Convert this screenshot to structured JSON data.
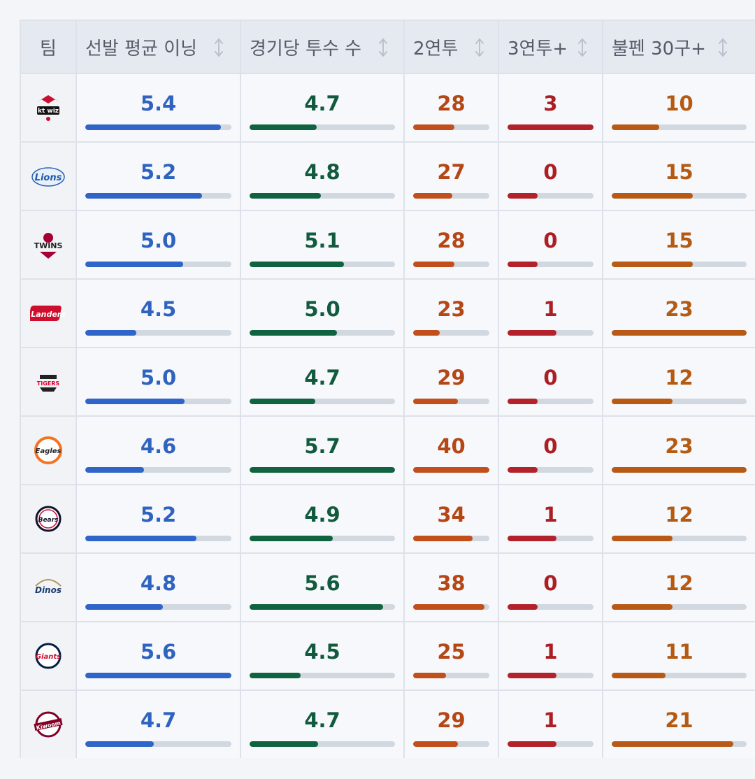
{
  "columns": [
    {
      "key": "team",
      "label": "팀",
      "sortable": false
    },
    {
      "key": "sp_ip",
      "label": "선발 평균 이닝",
      "sortable": true,
      "color": "#2f64c8",
      "max": 5.6
    },
    {
      "key": "pitchers",
      "label": "경기당 투수 수",
      "sortable": true,
      "color": "#0f6340",
      "max": 5.7
    },
    {
      "key": "b2b",
      "label": "2연투",
      "sortable": true,
      "color": "#c14f1b",
      "max": 40
    },
    {
      "key": "b3b",
      "label": "3연투+",
      "sortable": true,
      "color": "#b3222a",
      "max": 3
    },
    {
      "key": "bp30",
      "label": "불펜 30구+",
      "sortable": true,
      "color": "#b85a16",
      "max": 23
    }
  ],
  "rows": [
    {
      "team_logo": "kt-wiz-logo",
      "logo_text": "kt wiz",
      "sp_ip": "5.4",
      "pitchers": "4.7",
      "b2b": "28",
      "b3b": "3",
      "bp30": "10"
    },
    {
      "team_logo": "lions-logo",
      "logo_text": "Lions",
      "sp_ip": "5.2",
      "pitchers": "4.8",
      "b2b": "27",
      "b3b": "0",
      "bp30": "15"
    },
    {
      "team_logo": "twins-logo",
      "logo_text": "TWINS",
      "sp_ip": "5.0",
      "pitchers": "5.1",
      "b2b": "28",
      "b3b": "0",
      "bp30": "15"
    },
    {
      "team_logo": "landers-logo",
      "logo_text": "Landers",
      "sp_ip": "4.5",
      "pitchers": "5.0",
      "b2b": "23",
      "b3b": "1",
      "bp30": "23"
    },
    {
      "team_logo": "tigers-logo",
      "logo_text": "TIGERS",
      "sp_ip": "5.0",
      "pitchers": "4.7",
      "b2b": "29",
      "b3b": "0",
      "bp30": "12"
    },
    {
      "team_logo": "eagles-logo",
      "logo_text": "Eagles",
      "sp_ip": "4.6",
      "pitchers": "5.7",
      "b2b": "40",
      "b3b": "0",
      "bp30": "23"
    },
    {
      "team_logo": "bears-logo",
      "logo_text": "Bears",
      "sp_ip": "5.2",
      "pitchers": "4.9",
      "b2b": "34",
      "b3b": "1",
      "bp30": "12"
    },
    {
      "team_logo": "dinos-logo",
      "logo_text": "Dinos",
      "sp_ip": "4.8",
      "pitchers": "5.6",
      "b2b": "38",
      "b3b": "0",
      "bp30": "12"
    },
    {
      "team_logo": "giants-logo",
      "logo_text": "Giants",
      "sp_ip": "5.6",
      "pitchers": "4.5",
      "b2b": "25",
      "b3b": "1",
      "bp30": "11"
    },
    {
      "team_logo": "kiwoom-logo",
      "logo_text": "Kiwoom",
      "sp_ip": "4.7",
      "pitchers": "4.7",
      "b2b": "29",
      "b3b": "1",
      "bp30": "21"
    }
  ],
  "bar_levels": [
    {
      "sp_ip": 0.93,
      "pitchers": 0.46,
      "b2b": 0.54,
      "b3b": 1.0,
      "bp30": 0.35
    },
    {
      "sp_ip": 0.8,
      "pitchers": 0.49,
      "b2b": 0.51,
      "b3b": 0.35,
      "bp30": 0.6
    },
    {
      "sp_ip": 0.67,
      "pitchers": 0.65,
      "b2b": 0.54,
      "b3b": 0.35,
      "bp30": 0.6
    },
    {
      "sp_ip": 0.35,
      "pitchers": 0.6,
      "b2b": 0.35,
      "b3b": 0.57,
      "bp30": 1.0
    },
    {
      "sp_ip": 0.68,
      "pitchers": 0.45,
      "b2b": 0.59,
      "b3b": 0.35,
      "bp30": 0.45
    },
    {
      "sp_ip": 0.4,
      "pitchers": 1.0,
      "b2b": 1.0,
      "b3b": 0.35,
      "bp30": 1.0
    },
    {
      "sp_ip": 0.76,
      "pitchers": 0.57,
      "b2b": 0.78,
      "b3b": 0.57,
      "bp30": 0.45
    },
    {
      "sp_ip": 0.53,
      "pitchers": 0.92,
      "b2b": 0.94,
      "b3b": 0.35,
      "bp30": 0.45
    },
    {
      "sp_ip": 1.0,
      "pitchers": 0.35,
      "b2b": 0.43,
      "b3b": 0.57,
      "bp30": 0.4
    },
    {
      "sp_ip": 0.47,
      "pitchers": 0.47,
      "b2b": 0.59,
      "b3b": 0.57,
      "bp30": 0.9
    }
  ]
}
